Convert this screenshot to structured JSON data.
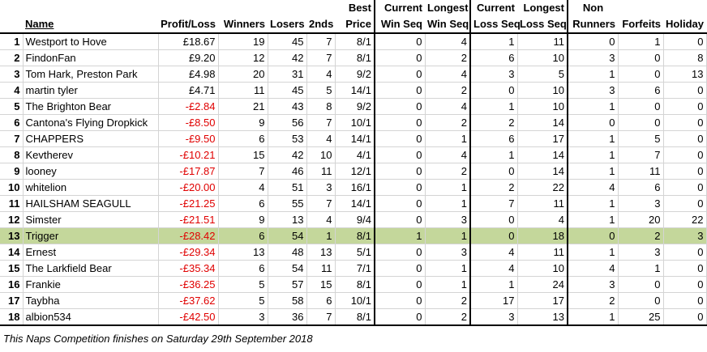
{
  "headers": {
    "name": "Name",
    "profit_loss": "Profit/Loss",
    "winners": "Winners",
    "losers": "Losers",
    "seconds": "2nds",
    "best_price": [
      "Best",
      "Price"
    ],
    "current_win_seq": [
      "Current",
      "Win Seq"
    ],
    "longest_win_seq": [
      "Longest",
      "Win Seq"
    ],
    "current_loss_seq": [
      "Current",
      "Loss Seq"
    ],
    "longest_loss_seq": [
      "Longest",
      "Loss Seq"
    ],
    "non_runners": [
      "Non",
      "Runners"
    ],
    "forfeits": "Forfeits",
    "holiday": "Holiday"
  },
  "rows": [
    {
      "rank": "1",
      "name": "Westport to Hove",
      "pl": "£18.67",
      "neg": false,
      "winners": "19",
      "losers": "45",
      "seconds": "7",
      "best": "8/1",
      "cws": "0",
      "lws": "4",
      "cls": "1",
      "lls": "11",
      "nr": "0",
      "forfeits": "1",
      "holiday": "0"
    },
    {
      "rank": "2",
      "name": "FindonFan",
      "pl": "£9.20",
      "neg": false,
      "winners": "12",
      "losers": "42",
      "seconds": "7",
      "best": "8/1",
      "cws": "0",
      "lws": "2",
      "cls": "6",
      "lls": "10",
      "nr": "3",
      "forfeits": "0",
      "holiday": "8"
    },
    {
      "rank": "3",
      "name": "Tom Hark, Preston Park",
      "pl": "£4.98",
      "neg": false,
      "winners": "20",
      "losers": "31",
      "seconds": "4",
      "best": "9/2",
      "cws": "0",
      "lws": "4",
      "cls": "3",
      "lls": "5",
      "nr": "1",
      "forfeits": "0",
      "holiday": "13"
    },
    {
      "rank": "4",
      "name": "martin tyler",
      "pl": "£4.71",
      "neg": false,
      "winners": "11",
      "losers": "45",
      "seconds": "5",
      "best": "14/1",
      "cws": "0",
      "lws": "2",
      "cls": "0",
      "lls": "10",
      "nr": "3",
      "forfeits": "6",
      "holiday": "0"
    },
    {
      "rank": "5",
      "name": "The Brighton Bear",
      "pl": "-£2.84",
      "neg": true,
      "winners": "21",
      "losers": "43",
      "seconds": "8",
      "best": "9/2",
      "cws": "0",
      "lws": "4",
      "cls": "1",
      "lls": "10",
      "nr": "1",
      "forfeits": "0",
      "holiday": "0"
    },
    {
      "rank": "6",
      "name": "Cantona's Flying Dropkick",
      "pl": "-£8.50",
      "neg": true,
      "winners": "9",
      "losers": "56",
      "seconds": "7",
      "best": "10/1",
      "cws": "0",
      "lws": "2",
      "cls": "2",
      "lls": "14",
      "nr": "0",
      "forfeits": "0",
      "holiday": "0"
    },
    {
      "rank": "7",
      "name": "CHAPPERS",
      "pl": "-£9.50",
      "neg": true,
      "winners": "6",
      "losers": "53",
      "seconds": "4",
      "best": "14/1",
      "cws": "0",
      "lws": "1",
      "cls": "6",
      "lls": "17",
      "nr": "1",
      "forfeits": "5",
      "holiday": "0"
    },
    {
      "rank": "8",
      "name": "Kevtherev",
      "pl": "-£10.21",
      "neg": true,
      "winners": "15",
      "losers": "42",
      "seconds": "10",
      "best": "4/1",
      "cws": "0",
      "lws": "4",
      "cls": "1",
      "lls": "14",
      "nr": "1",
      "forfeits": "7",
      "holiday": "0"
    },
    {
      "rank": "9",
      "name": "looney",
      "pl": "-£17.87",
      "neg": true,
      "winners": "7",
      "losers": "46",
      "seconds": "11",
      "best": "12/1",
      "cws": "0",
      "lws": "2",
      "cls": "0",
      "lls": "14",
      "nr": "1",
      "forfeits": "11",
      "holiday": "0"
    },
    {
      "rank": "10",
      "name": "whitelion",
      "pl": "-£20.00",
      "neg": true,
      "winners": "4",
      "losers": "51",
      "seconds": "3",
      "best": "16/1",
      "cws": "0",
      "lws": "1",
      "cls": "2",
      "lls": "22",
      "nr": "4",
      "forfeits": "6",
      "holiday": "0"
    },
    {
      "rank": "11",
      "name": "HAILSHAM SEAGULL",
      "pl": "-£21.25",
      "neg": true,
      "winners": "6",
      "losers": "55",
      "seconds": "7",
      "best": "14/1",
      "cws": "0",
      "lws": "1",
      "cls": "7",
      "lls": "11",
      "nr": "1",
      "forfeits": "3",
      "holiday": "0"
    },
    {
      "rank": "12",
      "name": "Simster",
      "pl": "-£21.51",
      "neg": true,
      "winners": "9",
      "losers": "13",
      "seconds": "4",
      "best": "9/4",
      "cws": "0",
      "lws": "3",
      "cls": "0",
      "lls": "4",
      "nr": "1",
      "forfeits": "20",
      "holiday": "22"
    },
    {
      "rank": "13",
      "name": "Trigger",
      "pl": "-£28.42",
      "neg": true,
      "winners": "6",
      "losers": "54",
      "seconds": "1",
      "best": "8/1",
      "cws": "1",
      "lws": "1",
      "cls": "0",
      "lls": "18",
      "nr": "0",
      "forfeits": "2",
      "holiday": "3",
      "highlight": true
    },
    {
      "rank": "14",
      "name": "Ernest",
      "pl": "-£29.34",
      "neg": true,
      "winners": "13",
      "losers": "48",
      "seconds": "13",
      "best": "5/1",
      "cws": "0",
      "lws": "3",
      "cls": "4",
      "lls": "11",
      "nr": "1",
      "forfeits": "3",
      "holiday": "0"
    },
    {
      "rank": "15",
      "name": "The Larkfield Bear",
      "pl": "-£35.34",
      "neg": true,
      "winners": "6",
      "losers": "54",
      "seconds": "11",
      "best": "7/1",
      "cws": "0",
      "lws": "1",
      "cls": "4",
      "lls": "10",
      "nr": "4",
      "forfeits": "1",
      "holiday": "0"
    },
    {
      "rank": "16",
      "name": "Frankie",
      "pl": "-£36.25",
      "neg": true,
      "winners": "5",
      "losers": "57",
      "seconds": "15",
      "best": "8/1",
      "cws": "0",
      "lws": "1",
      "cls": "1",
      "lls": "24",
      "nr": "3",
      "forfeits": "0",
      "holiday": "0"
    },
    {
      "rank": "17",
      "name": "Taybha",
      "pl": "-£37.62",
      "neg": true,
      "winners": "5",
      "losers": "58",
      "seconds": "6",
      "best": "10/1",
      "cws": "0",
      "lws": "2",
      "cls": "17",
      "lls": "17",
      "nr": "2",
      "forfeits": "0",
      "holiday": "0"
    },
    {
      "rank": "18",
      "name": "albion534",
      "pl": "-£42.50",
      "neg": true,
      "winners": "3",
      "losers": "36",
      "seconds": "7",
      "best": "8/1",
      "cws": "0",
      "lws": "2",
      "cls": "3",
      "lls": "13",
      "nr": "1",
      "forfeits": "25",
      "holiday": "0"
    }
  ],
  "footer": "This Naps Competition finishes on Saturday 29th September 2018",
  "colors": {
    "negative": "#e00000",
    "highlight": "#c4d79b"
  }
}
